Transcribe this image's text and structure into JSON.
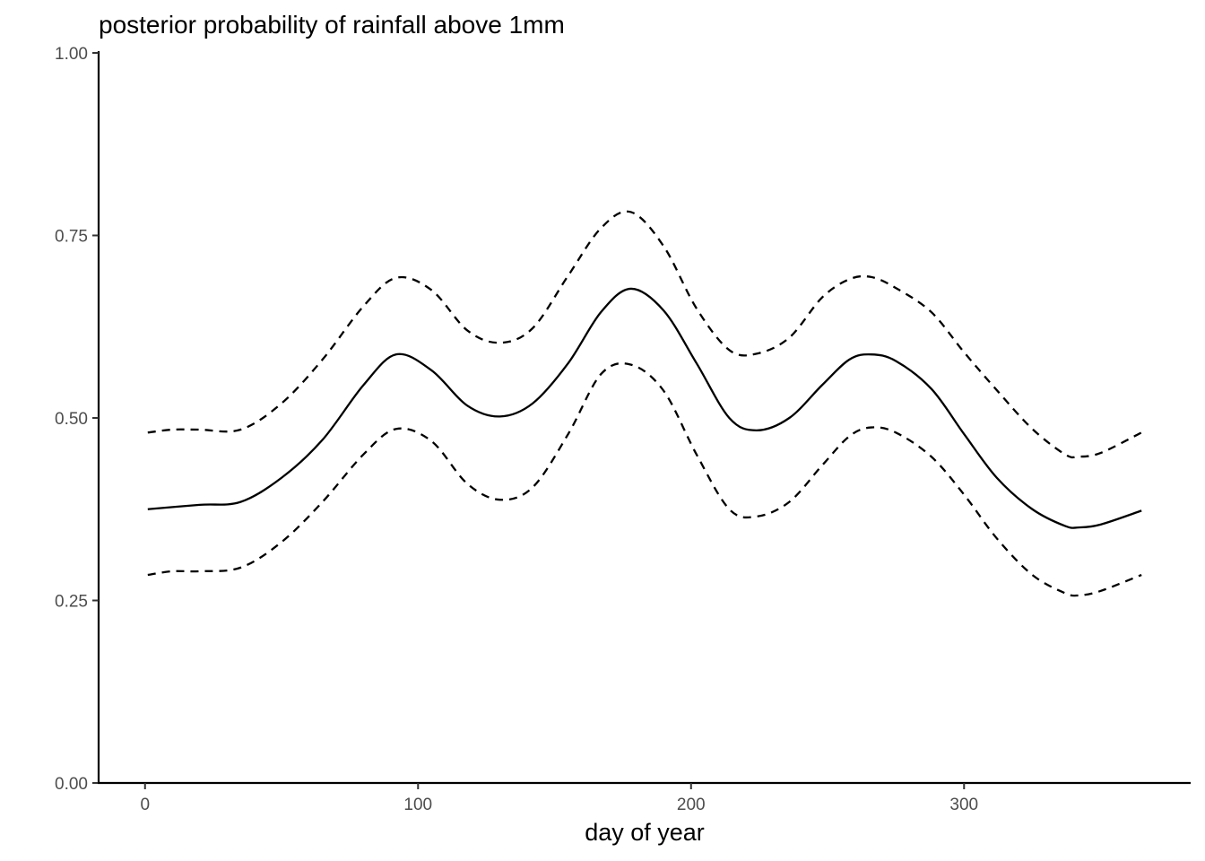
{
  "chart_data": {
    "type": "line",
    "title": "posterior probability of rainfall above 1mm",
    "xlabel": "day of year",
    "ylabel": "",
    "xlim": [
      -17,
      383
    ],
    "ylim": [
      0,
      1
    ],
    "x_ticks": [
      0,
      100,
      200,
      300
    ],
    "x_tick_labels": [
      "0",
      "100",
      "200",
      "300"
    ],
    "y_ticks": [
      0,
      0.25,
      0.5,
      0.75,
      1
    ],
    "y_tick_labels": [
      "0.00",
      "0.25",
      "0.50",
      "0.75",
      "1.00"
    ],
    "grid": false,
    "legend": "none",
    "series": [
      {
        "style": "solid",
        "x": [
          1,
          20,
          35,
          50,
          65,
          80,
          92,
          105,
          118,
          130,
          142,
          155,
          167,
          178,
          190,
          202,
          214,
          224,
          236,
          248,
          258,
          266,
          275,
          288,
          300,
          312,
          325,
          337,
          342,
          350,
          365
        ],
        "y": [
          0.375,
          0.381,
          0.385,
          0.418,
          0.47,
          0.545,
          0.587,
          0.565,
          0.517,
          0.502,
          0.52,
          0.575,
          0.645,
          0.677,
          0.647,
          0.575,
          0.5,
          0.483,
          0.5,
          0.545,
          0.58,
          0.587,
          0.578,
          0.54,
          0.478,
          0.418,
          0.375,
          0.352,
          0.35,
          0.354,
          0.373
        ]
      },
      {
        "style": "dashed",
        "x": [
          1,
          10,
          20,
          35,
          50,
          65,
          80,
          92,
          105,
          118,
          130,
          142,
          155,
          167,
          178,
          190,
          202,
          214,
          224,
          236,
          248,
          258,
          266,
          275,
          288,
          300,
          312,
          325,
          337,
          342,
          350,
          365
        ],
        "y": [
          0.48,
          0.484,
          0.484,
          0.484,
          0.52,
          0.58,
          0.653,
          0.692,
          0.675,
          0.62,
          0.603,
          0.623,
          0.695,
          0.76,
          0.782,
          0.735,
          0.65,
          0.593,
          0.588,
          0.61,
          0.665,
          0.69,
          0.693,
          0.678,
          0.645,
          0.59,
          0.538,
          0.485,
          0.45,
          0.447,
          0.452,
          0.48
        ]
      },
      {
        "style": "dashed",
        "x": [
          1,
          10,
          20,
          35,
          50,
          65,
          80,
          92,
          105,
          118,
          130,
          142,
          155,
          167,
          178,
          190,
          202,
          214,
          224,
          236,
          248,
          258,
          266,
          275,
          288,
          300,
          312,
          325,
          337,
          342,
          350,
          365
        ],
        "y": [
          0.285,
          0.29,
          0.29,
          0.295,
          0.33,
          0.385,
          0.45,
          0.485,
          0.468,
          0.41,
          0.388,
          0.405,
          0.478,
          0.56,
          0.573,
          0.537,
          0.45,
          0.375,
          0.365,
          0.385,
          0.435,
          0.475,
          0.487,
          0.48,
          0.447,
          0.395,
          0.335,
          0.285,
          0.26,
          0.257,
          0.263,
          0.285
        ]
      }
    ]
  }
}
